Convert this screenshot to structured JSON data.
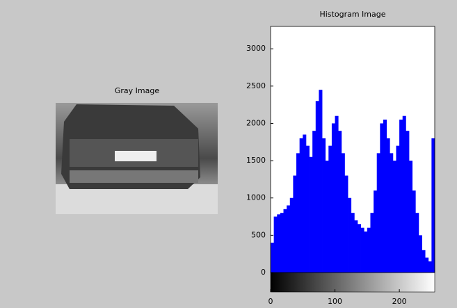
{
  "gray_image": {
    "title": "Gray Image"
  },
  "chart_data": {
    "type": "histogram",
    "title": "Histogram Image",
    "color": "#0000ff",
    "bins": [
      0,
      5,
      10,
      15,
      20,
      25,
      30,
      35,
      40,
      45,
      50,
      55,
      60,
      65,
      70,
      75,
      80,
      85,
      90,
      95,
      100,
      105,
      110,
      115,
      120,
      125,
      130,
      135,
      140,
      145,
      150,
      155,
      160,
      165,
      170,
      175,
      180,
      185,
      190,
      195,
      200,
      205,
      210,
      215,
      220,
      225,
      230,
      235,
      240,
      245,
      250,
      255
    ],
    "values": [
      400,
      750,
      780,
      800,
      850,
      900,
      1000,
      1300,
      1600,
      1800,
      1850,
      1700,
      1550,
      1900,
      2300,
      2450,
      1800,
      1500,
      1700,
      2000,
      2100,
      1900,
      1600,
      1300,
      1000,
      800,
      700,
      650,
      600,
      550,
      600,
      800,
      1100,
      1600,
      2000,
      2050,
      1800,
      1600,
      1500,
      1700,
      2050,
      2100,
      1900,
      1500,
      1100,
      800,
      500,
      300,
      200,
      150,
      1800
    ],
    "xlim": [
      0,
      255
    ],
    "ylim": [
      0,
      3300
    ],
    "xticks": [
      0,
      100,
      200
    ],
    "yticks": [
      0,
      500,
      1000,
      1500,
      2000,
      2500,
      3000
    ]
  }
}
